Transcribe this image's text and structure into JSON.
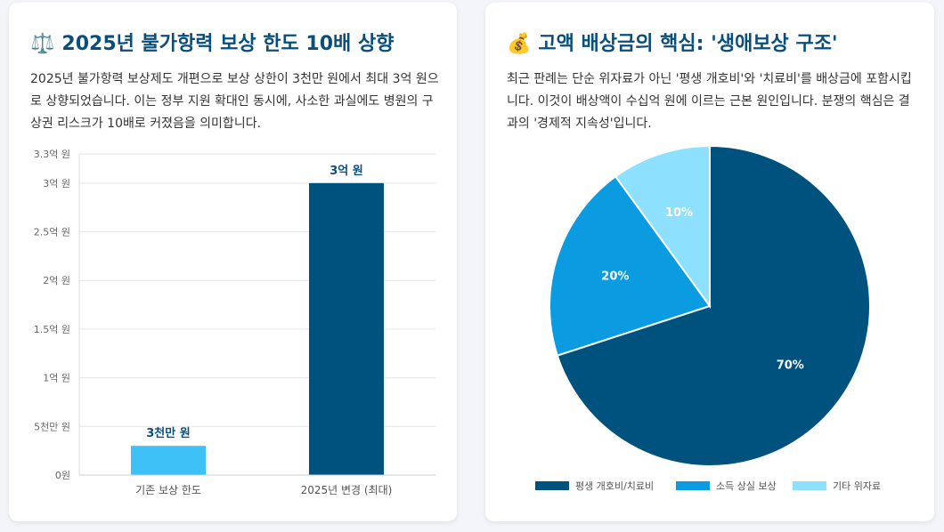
{
  "left": {
    "icon": "⚖️",
    "title": "2025년 불가항력 보상 한도 10배 상향",
    "description": "2025년 불가항력 보상제도 개편으로 보상 상한이 3천만 원에서 최대 3억 원으로 상향되었습니다. 이는 정부 지원 확대인 동시에, 사소한 과실에도 병원의 구상권 리스크가 10배로 커졌음을 의미합니다."
  },
  "right": {
    "icon": "💰",
    "title": "고액 배상금의 핵심: '생애보상 구조'",
    "description": "최근 판례는 단순 위자료가 아닌 '평생 개호비'와 '치료비'를 배상금에 포함시킵니다. 이것이 배상액이 수십억 원에 이르는 근본 원인입니다. 분쟁의 핵심은 결과의 '경제적 지속성'입니다."
  },
  "chart_data": [
    {
      "type": "bar",
      "categories": [
        "기존 보상 한도",
        "2025년 변경 (최대)"
      ],
      "values": [
        30000000,
        300000000
      ],
      "data_labels": [
        "3천만 원",
        "3억 원"
      ],
      "colors": [
        "#3ec1f7",
        "#00527e"
      ],
      "ylim": [
        0,
        330000000
      ],
      "yticks": [
        0,
        50000000,
        100000000,
        150000000,
        200000000,
        250000000,
        300000000,
        330000000
      ],
      "ytick_labels": [
        "0원",
        "5천만 원",
        "1억 원",
        "1.5억 원",
        "2억 원",
        "2.5억 원",
        "3억 원",
        "3.3억 원"
      ],
      "grid": true
    },
    {
      "type": "pie",
      "labels": [
        "평생 개호비/치료비",
        "소득 상실 보상",
        "기타 위자료"
      ],
      "values": [
        70,
        20,
        10
      ],
      "data_labels": [
        "70%",
        "20%",
        "10%"
      ],
      "colors": [
        "#00527e",
        "#0b9be0",
        "#8ee0ff"
      ],
      "legend": "bottom"
    }
  ]
}
